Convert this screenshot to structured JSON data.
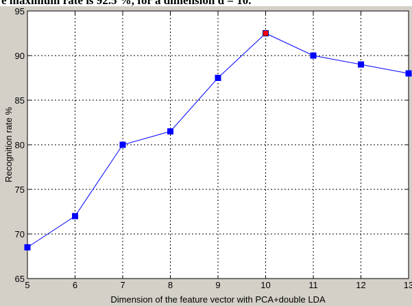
{
  "caption": "e maximum rate is 92.5 %, for a dimension d = 10.",
  "chart_data": {
    "type": "line",
    "xlabel": "Dimension of the feature vector with PCA+double LDA",
    "ylabel": "Recognition rate %",
    "x": [
      5,
      6,
      7,
      8,
      9,
      10,
      11,
      12,
      13
    ],
    "series": [
      {
        "name": "Recognition rate",
        "color": "#0000ff",
        "values": [
          68.5,
          72,
          80,
          81.5,
          87.5,
          92.5,
          90,
          89,
          88
        ],
        "marker_colors": [
          "#0000ff",
          "#0000ff",
          "#0000ff",
          "#0000ff",
          "#0000ff",
          "#ff0000",
          "#0000ff",
          "#0000ff",
          "#0000ff"
        ]
      }
    ],
    "xlim": [
      5,
      13
    ],
    "xticks": [
      5,
      6,
      7,
      8,
      9,
      10,
      11,
      12,
      13
    ],
    "ylim": [
      65,
      95
    ],
    "yticks": [
      65,
      70,
      75,
      80,
      85,
      90,
      95
    ],
    "grid": true,
    "legend": false
  }
}
